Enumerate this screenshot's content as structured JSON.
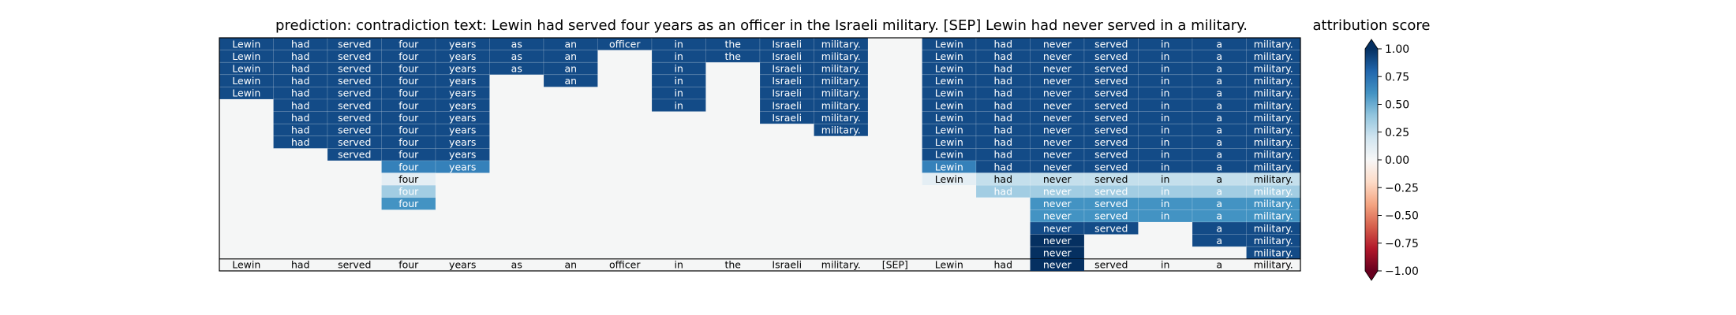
{
  "chart_data": {
    "type": "heatmap",
    "title": "prediction:  contradiction     text:  Lewin had served four years as an officer in the Israeli military. [SEP] Lewin had never served in a military.",
    "tokens": [
      "Lewin",
      "had",
      "served",
      "four",
      "years",
      "as",
      "an",
      "officer",
      "in",
      "the",
      "Israeli",
      "military.",
      "[SEP]",
      "Lewin",
      "had",
      "never",
      "served",
      "in",
      "a",
      "military."
    ],
    "colorbar": {
      "label": "attribution score",
      "range": [
        -1.0,
        1.0
      ],
      "ticks": [
        "1.00",
        "0.75",
        "0.50",
        "0.25",
        "0.00",
        "−0.25",
        "−0.50",
        "−0.75",
        "−1.00"
      ],
      "colormap": "RdBu",
      "extend": "both"
    },
    "grid": false,
    "legend_position": "right",
    "rows": [
      [
        0.9,
        0.9,
        0.9,
        0.9,
        0.9,
        0.9,
        0.9,
        0.9,
        0.9,
        0.9,
        0.9,
        0.9,
        null,
        0.9,
        0.9,
        0.9,
        0.9,
        0.9,
        0.9,
        0.9
      ],
      [
        0.9,
        0.9,
        0.9,
        0.9,
        0.9,
        0.9,
        0.9,
        null,
        0.9,
        0.9,
        0.9,
        0.9,
        null,
        0.9,
        0.9,
        0.9,
        0.9,
        0.9,
        0.9,
        0.9
      ],
      [
        0.9,
        0.9,
        0.9,
        0.9,
        0.9,
        0.9,
        0.9,
        null,
        0.9,
        null,
        0.9,
        0.9,
        null,
        0.9,
        0.9,
        0.9,
        0.9,
        0.9,
        0.9,
        0.9
      ],
      [
        0.9,
        0.9,
        0.9,
        0.9,
        0.9,
        null,
        0.9,
        null,
        0.9,
        null,
        0.9,
        0.9,
        null,
        0.9,
        0.9,
        0.9,
        0.9,
        0.9,
        0.9,
        0.9
      ],
      [
        0.9,
        0.9,
        0.9,
        0.9,
        0.9,
        null,
        null,
        null,
        0.9,
        null,
        0.9,
        0.9,
        null,
        0.9,
        0.9,
        0.9,
        0.9,
        0.9,
        0.9,
        0.9
      ],
      [
        null,
        0.9,
        0.9,
        0.9,
        0.9,
        null,
        null,
        null,
        0.9,
        null,
        0.9,
        0.9,
        null,
        0.9,
        0.9,
        0.9,
        0.9,
        0.9,
        0.9,
        0.9
      ],
      [
        null,
        0.9,
        0.9,
        0.9,
        0.9,
        null,
        null,
        null,
        null,
        null,
        0.9,
        0.9,
        null,
        0.9,
        0.9,
        0.9,
        0.9,
        0.9,
        0.9,
        0.9
      ],
      [
        null,
        0.9,
        0.9,
        0.9,
        0.9,
        null,
        null,
        null,
        null,
        null,
        null,
        0.9,
        null,
        0.9,
        0.9,
        0.9,
        0.9,
        0.9,
        0.9,
        0.9
      ],
      [
        null,
        0.9,
        0.9,
        0.9,
        0.9,
        null,
        null,
        null,
        null,
        null,
        null,
        null,
        null,
        0.9,
        0.9,
        0.9,
        0.9,
        0.9,
        0.9,
        0.9
      ],
      [
        null,
        null,
        0.9,
        0.9,
        0.9,
        null,
        null,
        null,
        null,
        null,
        null,
        null,
        null,
        0.9,
        0.9,
        0.9,
        0.9,
        0.9,
        0.9,
        0.9
      ],
      [
        null,
        null,
        null,
        0.68,
        0.68,
        null,
        null,
        null,
        null,
        null,
        null,
        null,
        null,
        0.68,
        0.9,
        0.9,
        0.9,
        0.9,
        0.9,
        0.9
      ],
      [
        null,
        null,
        null,
        0.1,
        null,
        null,
        null,
        null,
        null,
        null,
        null,
        null,
        null,
        0.1,
        0.24,
        0.24,
        0.24,
        0.24,
        0.24,
        0.24
      ],
      [
        null,
        null,
        null,
        0.35,
        null,
        null,
        null,
        null,
        null,
        null,
        null,
        null,
        null,
        null,
        0.35,
        0.35,
        0.35,
        0.35,
        0.35,
        0.35
      ],
      [
        null,
        null,
        null,
        0.6,
        null,
        null,
        null,
        null,
        null,
        null,
        null,
        null,
        null,
        null,
        null,
        0.6,
        0.6,
        0.6,
        0.6,
        0.6
      ],
      [
        null,
        null,
        null,
        null,
        null,
        null,
        null,
        null,
        null,
        null,
        null,
        null,
        null,
        null,
        null,
        0.6,
        0.6,
        0.6,
        0.6,
        0.6
      ],
      [
        null,
        null,
        null,
        null,
        null,
        null,
        null,
        null,
        null,
        null,
        null,
        null,
        null,
        null,
        null,
        0.9,
        0.9,
        null,
        0.9,
        0.9
      ],
      [
        null,
        null,
        null,
        null,
        null,
        null,
        null,
        null,
        null,
        null,
        null,
        null,
        null,
        null,
        null,
        1.0,
        null,
        null,
        0.9,
        0.9
      ],
      [
        null,
        null,
        null,
        null,
        null,
        null,
        null,
        null,
        null,
        null,
        null,
        null,
        null,
        null,
        null,
        1.0,
        null,
        null,
        null,
        0.9
      ]
    ],
    "baseline_highlight": [
      null,
      null,
      null,
      null,
      null,
      null,
      null,
      null,
      null,
      null,
      null,
      null,
      null,
      null,
      null,
      1.0,
      null,
      null,
      null,
      null
    ]
  }
}
